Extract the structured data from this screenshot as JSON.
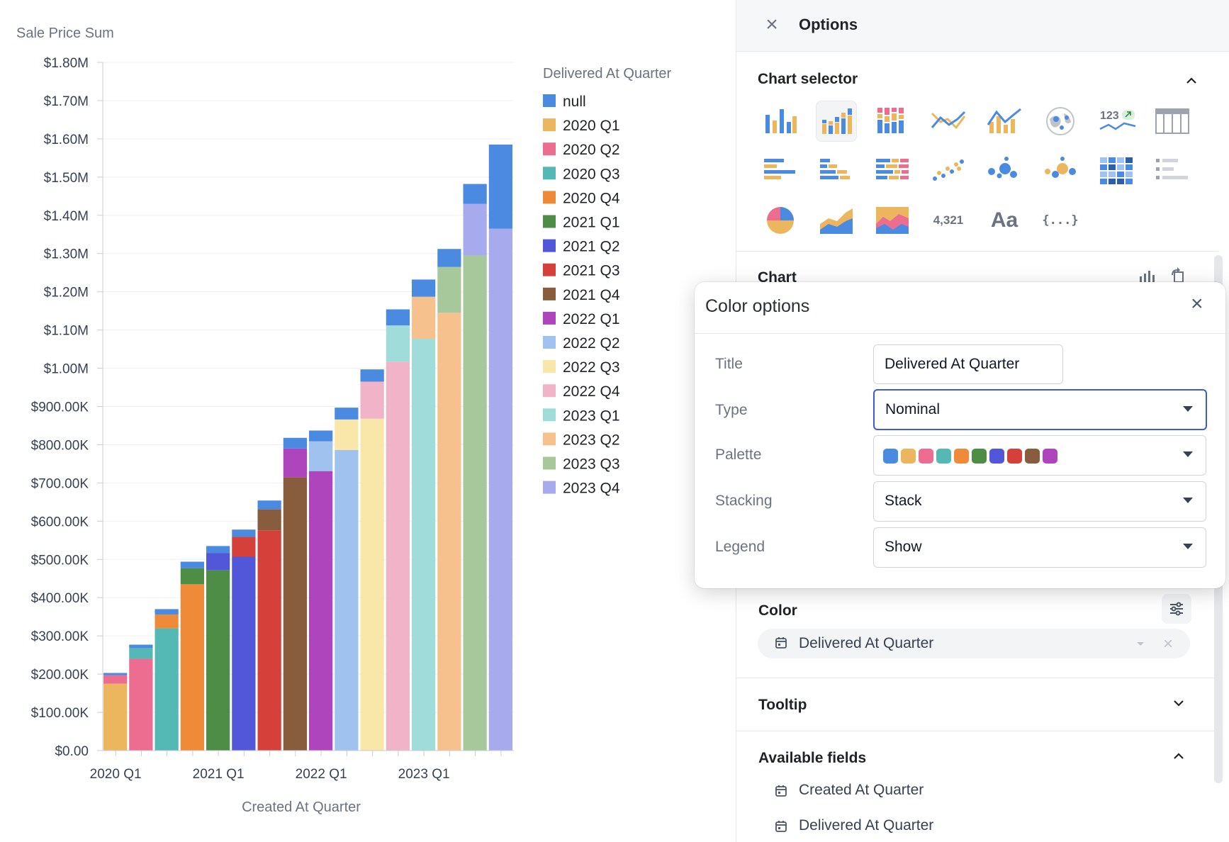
{
  "chart_data": {
    "type": "bar",
    "stacked": true,
    "ylabel": "Sale Price Sum",
    "xlabel": "Created At Quarter",
    "ylim": [
      0,
      1800000
    ],
    "y_ticks": [
      0,
      100000,
      200000,
      300000,
      400000,
      500000,
      600000,
      700000,
      800000,
      900000,
      1000000,
      1100000,
      1200000,
      1300000,
      1400000,
      1500000,
      1600000,
      1700000,
      1800000
    ],
    "y_tick_labels": [
      "$0.00",
      "$100.00K",
      "$200.00K",
      "$300.00K",
      "$400.00K",
      "$500.00K",
      "$600.00K",
      "$700.00K",
      "$800.00K",
      "$900.00K",
      "$1.00M",
      "$1.10M",
      "$1.20M",
      "$1.30M",
      "$1.40M",
      "$1.50M",
      "$1.60M",
      "$1.70M",
      "$1.80M"
    ],
    "categories": [
      "2020 Q1",
      "2020 Q2",
      "2020 Q3",
      "2020 Q4",
      "2021 Q1",
      "2021 Q2",
      "2021 Q3",
      "2021 Q4",
      "2022 Q1",
      "2022 Q2",
      "2022 Q3",
      "2022 Q4",
      "2023 Q1",
      "2023 Q2",
      "2023 Q3",
      "2023 Q4"
    ],
    "x_tick_labels": [
      "2020 Q1",
      "2021 Q1",
      "2022 Q1",
      "2023 Q1"
    ],
    "legend_title": "Delivered At Quarter",
    "legend_position": "top-right",
    "series": [
      {
        "name": "2020 Q1",
        "color": "#ecb65e",
        "values": [
          175000,
          0,
          0,
          0,
          0,
          0,
          0,
          0,
          0,
          0,
          0,
          0,
          0,
          0,
          0,
          0
        ]
      },
      {
        "name": "2020 Q2",
        "color": "#ec6d8f",
        "values": [
          22000,
          240000,
          0,
          0,
          0,
          0,
          0,
          0,
          0,
          0,
          0,
          0,
          0,
          0,
          0,
          0
        ]
      },
      {
        "name": "2020 Q3",
        "color": "#54b8b5",
        "values": [
          0,
          28000,
          320000,
          0,
          0,
          0,
          0,
          0,
          0,
          0,
          0,
          0,
          0,
          0,
          0,
          0
        ]
      },
      {
        "name": "2020 Q4",
        "color": "#ef8a39",
        "values": [
          0,
          0,
          36000,
          435000,
          0,
          0,
          0,
          0,
          0,
          0,
          0,
          0,
          0,
          0,
          0,
          0
        ]
      },
      {
        "name": "2021 Q1",
        "color": "#4e8d46",
        "values": [
          0,
          0,
          0,
          42000,
          472000,
          0,
          0,
          0,
          0,
          0,
          0,
          0,
          0,
          0,
          0,
          0
        ]
      },
      {
        "name": "2021 Q2",
        "color": "#5157d8",
        "values": [
          0,
          0,
          0,
          0,
          45000,
          507000,
          0,
          0,
          0,
          0,
          0,
          0,
          0,
          0,
          0,
          0
        ]
      },
      {
        "name": "2021 Q3",
        "color": "#d5413a",
        "values": [
          0,
          0,
          0,
          0,
          0,
          52000,
          576000,
          0,
          0,
          0,
          0,
          0,
          0,
          0,
          0,
          0
        ]
      },
      {
        "name": "2021 Q4",
        "color": "#875d3d",
        "values": [
          0,
          0,
          0,
          0,
          0,
          0,
          55000,
          715000,
          0,
          0,
          0,
          0,
          0,
          0,
          0,
          0
        ]
      },
      {
        "name": "2022 Q1",
        "color": "#ae45bc",
        "values": [
          0,
          0,
          0,
          0,
          0,
          0,
          0,
          75000,
          731000,
          0,
          0,
          0,
          0,
          0,
          0,
          0
        ]
      },
      {
        "name": "2022 Q2",
        "color": "#9fc3ee",
        "values": [
          0,
          0,
          0,
          0,
          0,
          0,
          0,
          0,
          78000,
          786000,
          0,
          0,
          0,
          0,
          0,
          0
        ]
      },
      {
        "name": "2022 Q3",
        "color": "#f8e7a8",
        "values": [
          0,
          0,
          0,
          0,
          0,
          0,
          0,
          0,
          0,
          80000,
          868000,
          0,
          0,
          0,
          0,
          0
        ]
      },
      {
        "name": "2022 Q4",
        "color": "#f1b3c7",
        "values": [
          0,
          0,
          0,
          0,
          0,
          0,
          0,
          0,
          0,
          0,
          97000,
          1017000,
          0,
          0,
          0,
          0
        ]
      },
      {
        "name": "2023 Q1",
        "color": "#a0dcd9",
        "values": [
          0,
          0,
          0,
          0,
          0,
          0,
          0,
          0,
          0,
          0,
          0,
          95000,
          1077000,
          0,
          0,
          0
        ]
      },
      {
        "name": "2023 Q2",
        "color": "#f6c18d",
        "values": [
          0,
          0,
          0,
          0,
          0,
          0,
          0,
          0,
          0,
          0,
          0,
          0,
          110000,
          1145000,
          0,
          0
        ]
      },
      {
        "name": "2023 Q3",
        "color": "#a6c89a",
        "values": [
          0,
          0,
          0,
          0,
          0,
          0,
          0,
          0,
          0,
          0,
          0,
          0,
          0,
          120000,
          1295000,
          0
        ]
      },
      {
        "name": "2023 Q4",
        "color": "#a8aaee",
        "values": [
          0,
          0,
          0,
          0,
          0,
          0,
          0,
          0,
          0,
          0,
          0,
          0,
          0,
          0,
          135000,
          1365000
        ]
      },
      {
        "name": "null",
        "color": "#4a8ae0",
        "values": [
          6000,
          9000,
          14000,
          17000,
          18000,
          19000,
          23000,
          28000,
          28000,
          31000,
          32000,
          42000,
          45000,
          47000,
          52000,
          220000
        ]
      }
    ],
    "legend_order": [
      "null",
      "2020 Q1",
      "2020 Q2",
      "2020 Q3",
      "2020 Q4",
      "2021 Q1",
      "2021 Q2",
      "2021 Q3",
      "2021 Q4",
      "2022 Q1",
      "2022 Q2",
      "2022 Q3",
      "2022 Q4",
      "2023 Q1",
      "2023 Q2",
      "2023 Q3",
      "2023 Q4"
    ]
  },
  "options": {
    "title": "Options",
    "chart_selector_title": "Chart selector",
    "chart_section_title": "Chart",
    "number_icon_text": "4,321",
    "text_icon_text": "Aa",
    "json_icon_text": "{...}",
    "kpi_icon_text": "123",
    "color_section_title": "Color",
    "color_field": "Delivered At Quarter",
    "tooltip_title": "Tooltip",
    "available_fields_title": "Available fields",
    "available_fields": [
      "Created At Quarter",
      "Delivered At Quarter"
    ]
  },
  "color_dialog": {
    "title": "Color options",
    "title_label": "Title",
    "title_value": "Delivered At Quarter",
    "type_label": "Type",
    "type_value": "Nominal",
    "palette_label": "Palette",
    "palette_colors": [
      "#4a8ae0",
      "#ecb65e",
      "#ec6d8f",
      "#54b8b5",
      "#ef8a39",
      "#4e8d46",
      "#5157d8",
      "#d5413a",
      "#875d3d",
      "#ae45bc"
    ],
    "stacking_label": "Stacking",
    "stacking_value": "Stack",
    "legend_label": "Legend",
    "legend_value": "Show"
  },
  "colors": {
    "accent": "#3b5bdb",
    "panel_header_bg": "#f6f7f9",
    "icon_orange": "#ecb65e",
    "icon_blue": "#4a8ae0",
    "icon_pink": "#ec6d8f"
  }
}
